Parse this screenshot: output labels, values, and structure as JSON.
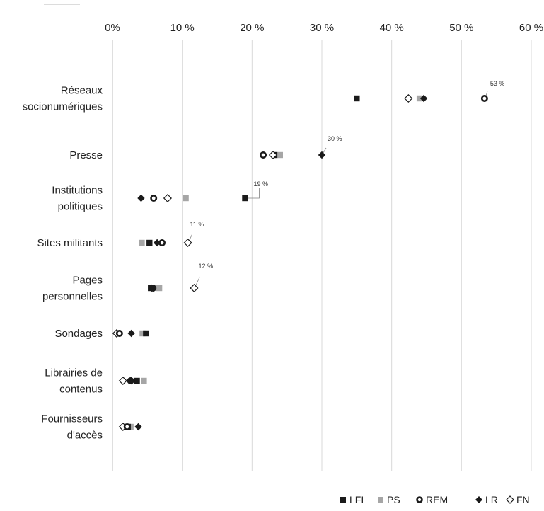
{
  "chart_data": {
    "type": "scatter",
    "xlim": [
      0,
      60
    ],
    "x_ticks": [
      0,
      10,
      20,
      30,
      40,
      50,
      60
    ],
    "x_tick_labels": [
      "0%",
      "10 %",
      "20 %",
      "30 %",
      "40 %",
      "50 %",
      "60 %"
    ],
    "grid": true,
    "legend_position": "bottom-right",
    "categories": [
      [
        "Réseaux",
        "socionumériques"
      ],
      [
        "Presse"
      ],
      [
        "Institutions",
        "politiques"
      ],
      [
        "Sites militants"
      ],
      [
        "Pages",
        "personnelles"
      ],
      [
        "Sondages"
      ],
      [
        "Librairies de",
        "contenus"
      ],
      [
        "Fournisseurs",
        "d'accès"
      ]
    ],
    "series": [
      {
        "name": "LFI",
        "marker": "square",
        "color": "#1a1a1a",
        "values": [
          35,
          23.2,
          19,
          5.3,
          5.5,
          4.8,
          3.5,
          2.2
        ]
      },
      {
        "name": "PS",
        "marker": "square",
        "color": "#a6a6a6",
        "values": [
          44,
          24,
          10.5,
          4.2,
          6.7,
          4.3,
          4.5,
          2.6
        ]
      },
      {
        "name": "REM",
        "marker": "ring",
        "color": "#1a1a1a",
        "values": [
          53.3,
          21.6,
          5.9,
          7.1,
          5.8,
          1,
          2.6,
          2.1
        ]
      },
      {
        "name": "LR",
        "marker": "diamond",
        "color": "#1a1a1a",
        "values": [
          44.6,
          30,
          4.1,
          6.4,
          5.6,
          2.7,
          2.7,
          3.7
        ]
      },
      {
        "name": "FN",
        "marker": "diamond-open",
        "color": "#1a1a1a",
        "values": [
          42.4,
          23,
          7.9,
          10.8,
          11.7,
          0.6,
          1.5,
          1.5
        ]
      }
    ],
    "annotations": [
      {
        "category": 0,
        "x": 53.3,
        "label": "53 %"
      },
      {
        "category": 1,
        "x": 30,
        "label": "30 %"
      },
      {
        "category": 2,
        "x": 19,
        "label": "19 %"
      },
      {
        "category": 3,
        "x": 10.8,
        "label": "11 %"
      },
      {
        "category": 4,
        "x": 11.7,
        "label": "12 %"
      }
    ]
  }
}
